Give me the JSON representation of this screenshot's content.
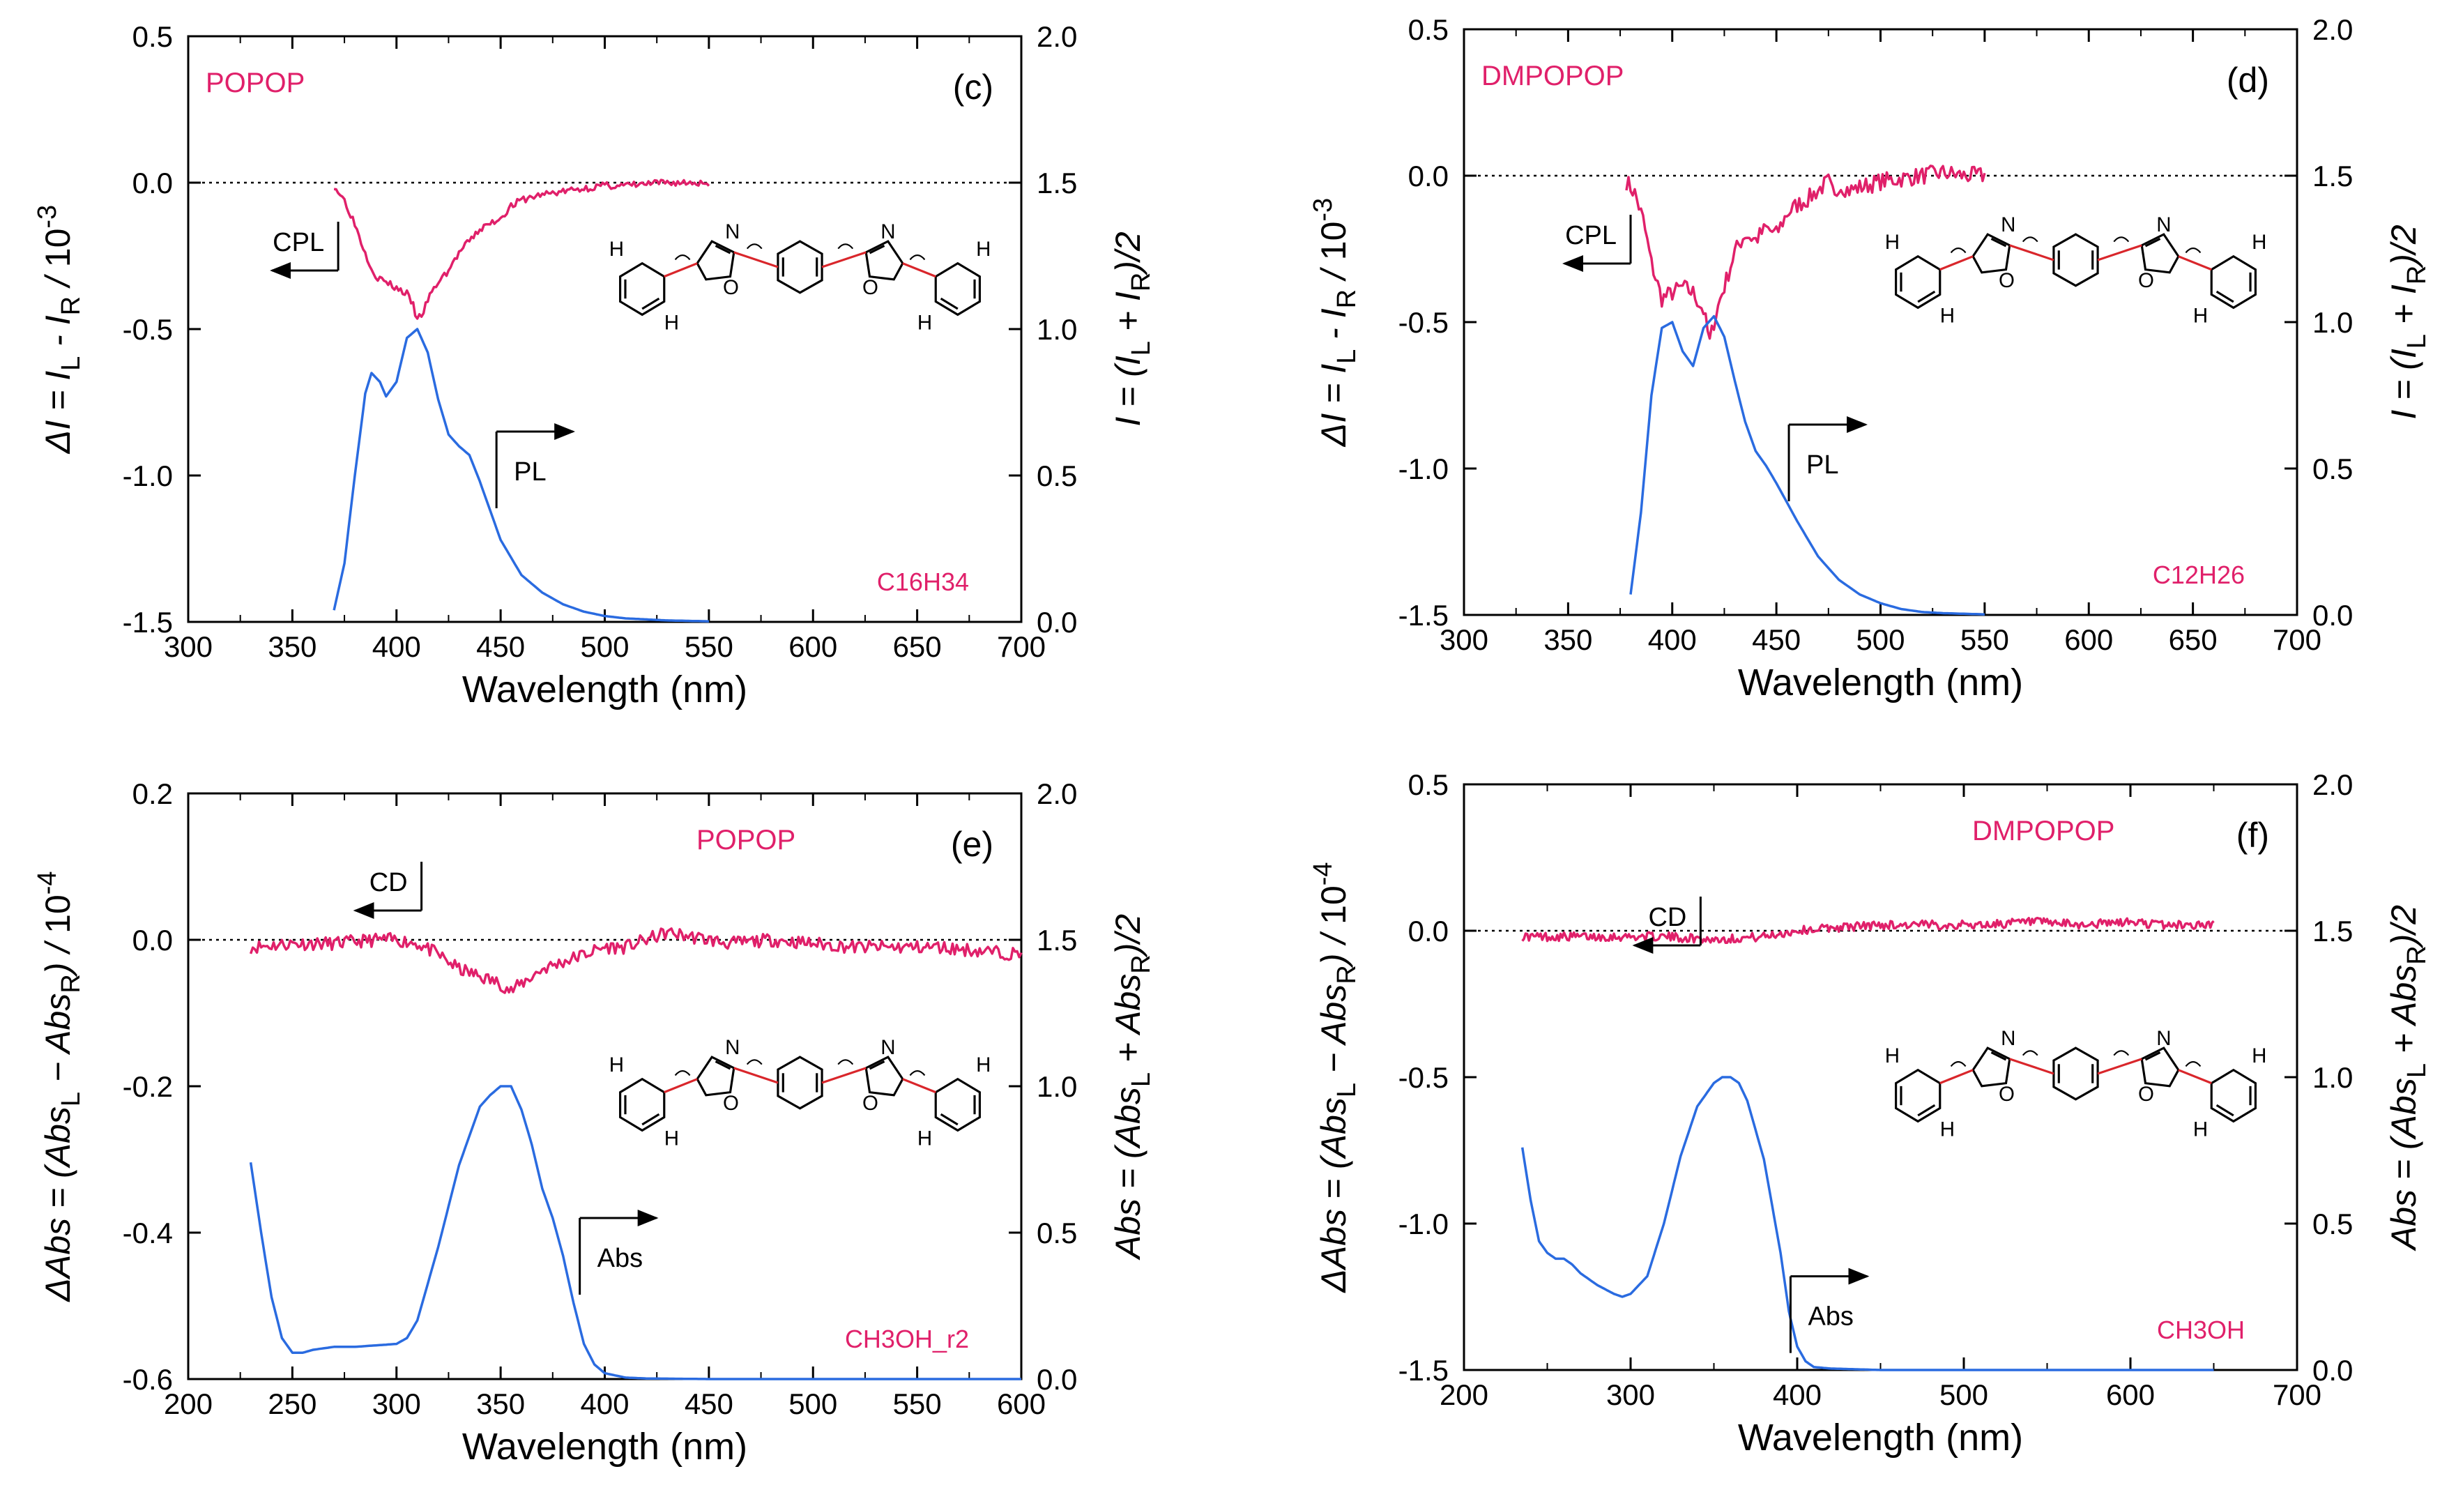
{
  "colors": {
    "cpl": "#e0206a",
    "pl": "#2a6be0",
    "axis": "#000000",
    "label": "#e0206a",
    "molbond": "#d9262b"
  },
  "chart_data": [
    {
      "id": "c",
      "type": "line",
      "panel_label": "(c)",
      "compound": "POPOP",
      "solvent": "C16H34",
      "xlabel": "Wavelength (nm)",
      "ylabel_left": "ΔI = IL - IR / 10-3",
      "ylabel_right": "I = (IL + IR)/2",
      "xlim": [
        300,
        700
      ],
      "ylim_left": [
        -1.5,
        0.5
      ],
      "ylim_right": [
        0.0,
        2.0
      ],
      "xticks": [
        300,
        350,
        400,
        450,
        500,
        550,
        600,
        650,
        700
      ],
      "xtick_labels": [
        "300",
        "350",
        "400",
        "450",
        "500",
        "550",
        "600",
        "650",
        "700"
      ],
      "yticks_left": [
        0.5,
        0.0,
        -0.5,
        -1.0,
        -1.5
      ],
      "yticks_left_labels": [
        "0.5",
        "0.0",
        "-0.5",
        "-1.0",
        "-1.5"
      ],
      "yticks_right": [
        2.0,
        1.5,
        1.0,
        0.5,
        0.0
      ],
      "yticks_right_labels": [
        "2.0",
        "1.5",
        "1.0",
        "0.5",
        "0.0"
      ],
      "dotted_zero": true,
      "arrow_left": {
        "label": "CPL",
        "x": 372,
        "y": -0.3
      },
      "arrow_right": {
        "label": "PL",
        "x": 448,
        "y": 0.65
      },
      "series": [
        {
          "name": "CPL",
          "axis": "left",
          "color": "cpl",
          "noise": 0.012,
          "seed": 3,
          "x": [
            370,
            375,
            380,
            385,
            390,
            395,
            400,
            405,
            408,
            410,
            413,
            415,
            420,
            425,
            430,
            435,
            440,
            445,
            450,
            455,
            460,
            470,
            480,
            490,
            500,
            510,
            520,
            530,
            540,
            550
          ],
          "y": [
            -0.01,
            -0.06,
            -0.14,
            -0.24,
            -0.32,
            -0.34,
            -0.36,
            -0.38,
            -0.42,
            -0.47,
            -0.44,
            -0.4,
            -0.34,
            -0.3,
            -0.24,
            -0.2,
            -0.16,
            -0.14,
            -0.12,
            -0.08,
            -0.06,
            -0.04,
            -0.03,
            -0.02,
            -0.01,
            -0.01,
            -0.005,
            0,
            0,
            0
          ]
        },
        {
          "name": "PL",
          "axis": "right",
          "color": "pl",
          "noise": 0,
          "seed": 0,
          "x": [
            370,
            375,
            380,
            385,
            388,
            392,
            395,
            400,
            405,
            410,
            415,
            420,
            425,
            430,
            435,
            440,
            450,
            460,
            470,
            480,
            490,
            500,
            510,
            530,
            550
          ],
          "y": [
            0.04,
            0.2,
            0.5,
            0.78,
            0.85,
            0.82,
            0.77,
            0.82,
            0.97,
            1.0,
            0.92,
            0.76,
            0.64,
            0.6,
            0.57,
            0.48,
            0.28,
            0.16,
            0.1,
            0.06,
            0.035,
            0.02,
            0.012,
            0.005,
            0.002
          ]
        }
      ]
    },
    {
      "id": "d",
      "type": "line",
      "panel_label": "(d)",
      "compound": "DMPOPOP",
      "solvent": "C12H26",
      "xlabel": "Wavelength (nm)",
      "ylabel_left": "ΔI = IL - IR / 10-3",
      "ylabel_right": "I = (IL + IR)/2",
      "xlim": [
        300,
        700
      ],
      "ylim_left": [
        -1.5,
        0.5
      ],
      "ylim_right": [
        0.0,
        2.0
      ],
      "xticks": [
        300,
        350,
        400,
        450,
        500,
        550,
        600,
        650,
        700
      ],
      "xtick_labels": [
        "300",
        "350",
        "400",
        "450",
        "500",
        "550",
        "600",
        "650",
        "700"
      ],
      "yticks_left": [
        0.5,
        0.0,
        -0.5,
        -1.0,
        -1.5
      ],
      "yticks_left_labels": [
        "0.5",
        "0.0",
        "-0.5",
        "-1.0",
        "-1.5"
      ],
      "yticks_right": [
        2.0,
        1.5,
        1.0,
        0.5,
        0.0
      ],
      "yticks_right_labels": [
        "2.0",
        "1.5",
        "1.0",
        "0.5",
        "0.0"
      ],
      "dotted_zero": true,
      "arrow_left": {
        "label": "CPL",
        "x": 380,
        "y": -0.3
      },
      "arrow_right": {
        "label": "PL",
        "x": 456,
        "y": 0.65
      },
      "series": [
        {
          "name": "CPL",
          "axis": "left",
          "color": "cpl",
          "noise": 0.03,
          "seed": 7,
          "x": [
            378,
            382,
            386,
            390,
            395,
            400,
            405,
            410,
            415,
            418,
            420,
            423,
            425,
            430,
            435,
            440,
            445,
            450,
            455,
            460,
            465,
            470,
            475,
            478,
            480,
            485,
            490,
            500,
            510,
            520,
            530,
            540,
            550
          ],
          "y": [
            -0.02,
            -0.06,
            -0.15,
            -0.3,
            -0.42,
            -0.4,
            -0.38,
            -0.4,
            -0.46,
            -0.57,
            -0.5,
            -0.42,
            -0.38,
            -0.26,
            -0.2,
            -0.22,
            -0.18,
            -0.2,
            -0.13,
            -0.1,
            -0.08,
            -0.05,
            -0.02,
            -0.08,
            -0.03,
            -0.05,
            -0.04,
            -0.02,
            -0.01,
            0,
            0.01,
            0,
            0
          ]
        },
        {
          "name": "PL",
          "axis": "right",
          "color": "pl",
          "noise": 0,
          "seed": 0,
          "x": [
            380,
            385,
            390,
            395,
            400,
            405,
            410,
            415,
            420,
            425,
            430,
            435,
            440,
            445,
            450,
            460,
            470,
            480,
            490,
            500,
            510,
            520,
            530,
            550
          ],
          "y": [
            0.07,
            0.35,
            0.75,
            0.98,
            1.0,
            0.9,
            0.85,
            0.98,
            1.02,
            0.95,
            0.8,
            0.66,
            0.56,
            0.51,
            0.45,
            0.32,
            0.2,
            0.12,
            0.07,
            0.04,
            0.02,
            0.01,
            0.006,
            0.002
          ]
        }
      ]
    },
    {
      "id": "e",
      "type": "line",
      "panel_label": "(e)",
      "compound": "POPOP",
      "solvent": "CH3OH_r2",
      "xlabel": "Wavelength (nm)",
      "ylabel_left": "ΔAbs = (AbsL − AbsR) / 10-4",
      "ylabel_right": "Abs = (AbsL + AbsR)/2",
      "xlim": [
        200,
        600
      ],
      "ylim_left": [
        -0.6,
        0.2
      ],
      "ylim_right": [
        0.0,
        2.0
      ],
      "xticks": [
        200,
        250,
        300,
        350,
        400,
        450,
        500,
        550,
        600
      ],
      "xtick_labels": [
        "200",
        "250",
        "300",
        "350",
        "400",
        "450",
        "500",
        "550",
        "600"
      ],
      "yticks_left": [
        0.2,
        0.0,
        -0.2,
        -0.4,
        -0.6
      ],
      "yticks_left_labels": [
        "0.2",
        "0.0",
        "-0.2",
        "-0.4",
        "-0.6"
      ],
      "yticks_right": [
        2.0,
        1.5,
        1.0,
        0.5,
        0.0
      ],
      "yticks_right_labels": [
        "2.0",
        "1.5",
        "1.0",
        "0.5",
        "0.0"
      ],
      "dotted_zero": true,
      "arrow_left": {
        "label": "CD",
        "x": 312,
        "y": 0.04
      },
      "arrow_right": {
        "label": "Abs",
        "x": 388,
        "y": 0.55
      },
      "series": [
        {
          "name": "CD",
          "axis": "left",
          "color": "cpl",
          "noise": 0.009,
          "seed": 11,
          "x": [
            230,
            250,
            270,
            290,
            300,
            310,
            320,
            330,
            340,
            350,
            355,
            360,
            365,
            370,
            380,
            390,
            400,
            410,
            420,
            430,
            440,
            450,
            460,
            480,
            500,
            520,
            540,
            560,
            580,
            600
          ],
          "y": [
            -0.01,
            -0.005,
            -0.005,
            0,
            0,
            -0.005,
            -0.02,
            -0.04,
            -0.05,
            -0.06,
            -0.07,
            -0.06,
            -0.05,
            -0.04,
            -0.03,
            -0.02,
            -0.01,
            -0.01,
            0,
            0.01,
            0.005,
            0,
            -0.005,
            0,
            -0.005,
            -0.01,
            -0.01,
            -0.01,
            -0.015,
            -0.02
          ]
        },
        {
          "name": "Abs",
          "axis": "right",
          "color": "pl",
          "noise": 0,
          "seed": 0,
          "x": [
            230,
            235,
            240,
            245,
            250,
            255,
            260,
            270,
            280,
            290,
            300,
            305,
            310,
            320,
            330,
            340,
            345,
            350,
            355,
            360,
            365,
            370,
            375,
            380,
            385,
            390,
            395,
            400,
            410,
            420,
            450,
            500,
            550,
            600
          ],
          "y": [
            0.74,
            0.5,
            0.28,
            0.14,
            0.09,
            0.09,
            0.1,
            0.11,
            0.11,
            0.115,
            0.12,
            0.14,
            0.2,
            0.45,
            0.73,
            0.93,
            0.97,
            1.0,
            1.0,
            0.92,
            0.8,
            0.65,
            0.55,
            0.42,
            0.26,
            0.12,
            0.05,
            0.02,
            0.005,
            0.002,
            0,
            0,
            0,
            0
          ]
        }
      ]
    },
    {
      "id": "f",
      "type": "line",
      "panel_label": "(f)",
      "compound": "DMPOPOP",
      "solvent": "CH3OH",
      "xlabel": "Wavelength (nm)",
      "ylabel_left": "ΔAbs = (AbsL − AbsR) / 10-4",
      "ylabel_right": "Abs = (AbsL + AbsR)/2",
      "xlim": [
        200,
        700
      ],
      "ylim_left": [
        -1.5,
        0.5
      ],
      "ylim_right": [
        0.0,
        2.0
      ],
      "xticks": [
        200,
        300,
        400,
        500,
        600,
        700
      ],
      "xtick_labels": [
        "200",
        "300",
        "400",
        "500",
        "600",
        "700"
      ],
      "yticks_left": [
        0.5,
        0.0,
        -0.5,
        -1.0,
        -1.5
      ],
      "yticks_left_labels": [
        "0.5",
        "0.0",
        "-0.5",
        "-1.0",
        "-1.5"
      ],
      "yticks_right": [
        2.0,
        1.5,
        1.0,
        0.5,
        0.0
      ],
      "yticks_right_labels": [
        "2.0",
        "1.5",
        "1.0",
        "0.5",
        "0.0"
      ],
      "dotted_zero": true,
      "arrow_left": {
        "label": "CD",
        "x": 342,
        "y": -0.05
      },
      "arrow_right": {
        "label": "Abs",
        "x": 396,
        "y": 0.32
      },
      "series": [
        {
          "name": "CD",
          "axis": "left",
          "color": "cpl",
          "noise": 0.015,
          "seed": 17,
          "x": [
            235,
            260,
            290,
            320,
            350,
            380,
            400,
            420,
            450,
            480,
            510,
            540,
            570,
            600,
            620,
            650
          ],
          "y": [
            -0.02,
            -0.02,
            -0.02,
            -0.02,
            -0.03,
            -0.02,
            0.0,
            0.01,
            0.02,
            0.02,
            0.02,
            0.03,
            0.02,
            0.03,
            0.02,
            0.02
          ]
        },
        {
          "name": "Abs",
          "axis": "right",
          "color": "pl",
          "noise": 0,
          "seed": 0,
          "x": [
            235,
            240,
            245,
            250,
            255,
            260,
            265,
            270,
            280,
            290,
            295,
            300,
            310,
            320,
            330,
            340,
            350,
            355,
            360,
            365,
            370,
            380,
            390,
            395,
            400,
            405,
            410,
            420,
            450,
            500,
            600,
            650
          ],
          "y": [
            0.76,
            0.58,
            0.44,
            0.4,
            0.38,
            0.38,
            0.36,
            0.33,
            0.29,
            0.26,
            0.25,
            0.26,
            0.32,
            0.5,
            0.73,
            0.9,
            0.98,
            1.0,
            1.0,
            0.98,
            0.92,
            0.72,
            0.4,
            0.2,
            0.08,
            0.03,
            0.01,
            0.005,
            0,
            0,
            0,
            0
          ]
        }
      ]
    }
  ]
}
